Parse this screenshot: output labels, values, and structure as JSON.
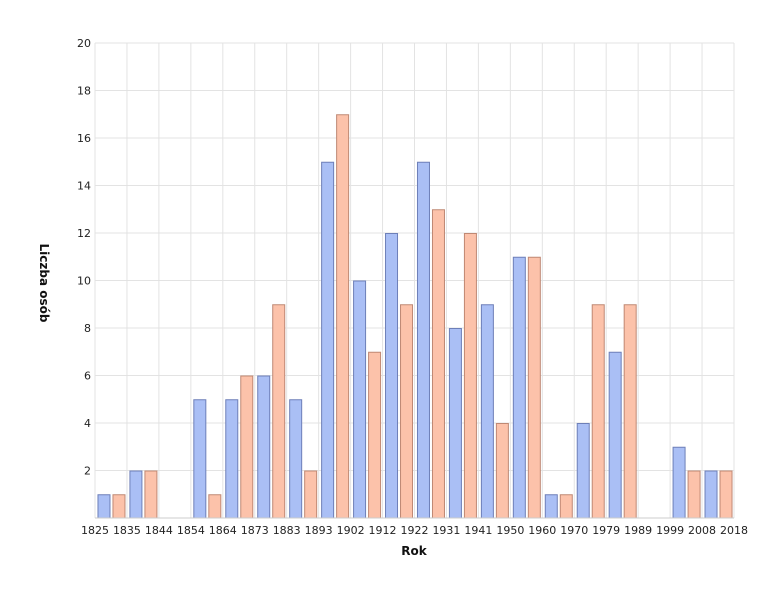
{
  "chart_data": {
    "type": "bar",
    "xlabel": "Rok",
    "ylabel": "Liczba osób",
    "ylim": [
      0,
      20
    ],
    "y_ticks": [
      2,
      4,
      6,
      8,
      10,
      12,
      14,
      16,
      18,
      20
    ],
    "x_ticks": [
      "1825",
      "1835",
      "1844",
      "1854",
      "1864",
      "1873",
      "1883",
      "1893",
      "1902",
      "1912",
      "1922",
      "1931",
      "1941",
      "1950",
      "1960",
      "1970",
      "1979",
      "1989",
      "1999",
      "2008",
      "2018"
    ],
    "grid": true,
    "colors": {
      "series_a_fill": "#aabff5",
      "series_a_stroke": "#6d7fb8",
      "series_b_fill": "#fcc2aa",
      "series_b_stroke": "#bf8873"
    },
    "series": [
      {
        "values": [
          1,
          2,
          0,
          5,
          5,
          6,
          5,
          15,
          10,
          12,
          15,
          8,
          9,
          11,
          1,
          4,
          7,
          0,
          3,
          2
        ]
      },
      {
        "values": [
          1,
          2,
          0,
          1,
          6,
          9,
          2,
          17,
          7,
          9,
          13,
          12,
          4,
          11,
          1,
          9,
          9,
          0,
          2,
          2
        ]
      }
    ]
  }
}
